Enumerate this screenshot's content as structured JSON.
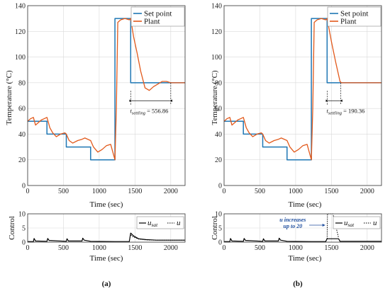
{
  "panels": [
    {
      "label": "(a)",
      "top": {
        "ylabel": "Temperature (°C)",
        "xlabel": "Time (sec)",
        "annotation": "556.86"
      },
      "bottom": {
        "ylabel": "Control",
        "xlabel": "Time (sec)",
        "note": ""
      }
    },
    {
      "label": "(b)",
      "top": {
        "ylabel": "Temperature (°C)",
        "xlabel": "Time (sec)",
        "annotation": "190.36"
      },
      "bottom": {
        "ylabel": "Control",
        "xlabel": "Time (sec)",
        "note": "u increases up to 20"
      }
    }
  ],
  "legend_top": [
    "Set point",
    "Plant"
  ],
  "colors": {
    "setpoint": "#1f77b4",
    "plant": "#e2591b",
    "grid": "#d9d9d9",
    "control": "#000000",
    "note": "#1f4e9e"
  },
  "chart_data": [
    {
      "type": "line",
      "xlabel": "Time (sec)",
      "ylabel": "Temperature (°C)",
      "xlim": [
        0,
        2200
      ],
      "ylim": [
        0,
        140
      ],
      "xticks": [
        0,
        500,
        1000,
        1500,
        2000
      ],
      "yticks": [
        0,
        20,
        40,
        60,
        80,
        100,
        120,
        140
      ],
      "grid": true,
      "legend": "top-right",
      "annotation": {
        "label": "t_settling = 556.86",
        "from": 1442,
        "to": 2000,
        "y": 66
      },
      "series": [
        {
          "name": "Set point",
          "x": [
            0,
            270,
            270,
            540,
            540,
            880,
            880,
            1220,
            1220,
            1440,
            1440,
            2200
          ],
          "y": [
            50,
            50,
            40,
            40,
            30,
            30,
            20,
            20,
            130,
            130,
            80,
            80
          ]
        },
        {
          "name": "Plant",
          "x": [
            0,
            40,
            80,
            110,
            150,
            190,
            230,
            270,
            310,
            350,
            400,
            460,
            520,
            540,
            580,
            630,
            700,
            760,
            800,
            880,
            920,
            980,
            1040,
            1100,
            1160,
            1220,
            1240,
            1260,
            1300,
            1360,
            1420,
            1440,
            1480,
            1530,
            1580,
            1640,
            1700,
            1760,
            1820,
            1880,
            1940,
            2000,
            2060,
            2120,
            2200
          ],
          "y": [
            50,
            52,
            53,
            47,
            49,
            51,
            52,
            53,
            45,
            41,
            38,
            40,
            41,
            40,
            35,
            33,
            35,
            36,
            37,
            35,
            30,
            26,
            28,
            31,
            32,
            20,
            60,
            127,
            129,
            130,
            129,
            130,
            116,
            103,
            89,
            76,
            74,
            77,
            79,
            81,
            81,
            80,
            80,
            80,
            80
          ]
        }
      ]
    },
    {
      "type": "line",
      "xlabel": "Time (sec)",
      "ylabel": "Control",
      "xlim": [
        0,
        2200
      ],
      "ylim": [
        0,
        10
      ],
      "xticks": [
        0,
        500,
        1000,
        1500,
        2000
      ],
      "yticks": [
        0,
        5,
        10
      ],
      "grid": true,
      "legend": "top-right",
      "legend_entries": [
        "u",
        "sat",
        "u"
      ],
      "series": [
        {
          "name": "u sat",
          "x": [
            0,
            80,
            90,
            110,
            270,
            280,
            300,
            540,
            550,
            570,
            760,
            770,
            790,
            880,
            1220,
            1230,
            1420,
            1440,
            1480,
            1550,
            1650,
            1800,
            2200
          ],
          "y": [
            0.2,
            0.2,
            1.3,
            0.4,
            0.3,
            1.3,
            0.6,
            0.3,
            1.2,
            0.4,
            0.4,
            1.4,
            0.7,
            0.3,
            0.2,
            0.2,
            0.2,
            3.2,
            2.2,
            1.2,
            0.9,
            0.7,
            0.7
          ]
        },
        {
          "name": "u",
          "x": [
            1440,
            1480,
            1550,
            1650,
            1800,
            2200
          ],
          "y": [
            2.5,
            1.8,
            1.1,
            0.8,
            0.7,
            0.7
          ]
        }
      ]
    },
    {
      "type": "line",
      "xlabel": "Time (sec)",
      "ylabel": "Temperature (°C)",
      "xlim": [
        0,
        2200
      ],
      "ylim": [
        0,
        140
      ],
      "xticks": [
        0,
        500,
        1000,
        1500,
        2000
      ],
      "yticks": [
        0,
        20,
        40,
        60,
        80,
        100,
        120,
        140
      ],
      "grid": true,
      "legend": "top-right",
      "annotation": {
        "label": "t_settling = 190.36",
        "from": 1442,
        "to": 1632,
        "y": 66
      },
      "series": [
        {
          "name": "Set point",
          "x": [
            0,
            270,
            270,
            540,
            540,
            880,
            880,
            1220,
            1220,
            1440,
            1440,
            2200
          ],
          "y": [
            50,
            50,
            40,
            40,
            30,
            30,
            20,
            20,
            130,
            130,
            80,
            80
          ]
        },
        {
          "name": "Plant",
          "x": [
            0,
            40,
            80,
            110,
            150,
            190,
            230,
            270,
            310,
            350,
            400,
            460,
            520,
            540,
            580,
            630,
            700,
            760,
            800,
            880,
            920,
            980,
            1040,
            1100,
            1160,
            1220,
            1240,
            1260,
            1300,
            1360,
            1420,
            1440,
            1500,
            1560,
            1620,
            1640,
            1800,
            2000,
            2200
          ],
          "y": [
            50,
            52,
            53,
            47,
            49,
            51,
            52,
            53,
            45,
            41,
            38,
            40,
            41,
            40,
            35,
            33,
            35,
            36,
            37,
            35,
            30,
            26,
            28,
            31,
            32,
            20,
            60,
            127,
            129,
            130,
            129,
            130,
            112,
            96,
            81,
            80,
            80,
            80,
            80
          ]
        }
      ]
    },
    {
      "type": "line",
      "xlabel": "Time (sec)",
      "ylabel": "Control",
      "xlim": [
        0,
        2200
      ],
      "ylim": [
        0,
        10
      ],
      "xticks": [
        0,
        500,
        1000,
        1500,
        2000
      ],
      "yticks": [
        0,
        5,
        10
      ],
      "grid": true,
      "legend": "top-right",
      "legend_entries": [
        "u",
        "sat",
        "u"
      ],
      "annotation": {
        "label": "u increases up to 20"
      },
      "series": [
        {
          "name": "u sat",
          "x": [
            0,
            80,
            90,
            110,
            270,
            280,
            300,
            540,
            550,
            570,
            760,
            770,
            790,
            880,
            1220,
            1230,
            1420,
            1440,
            1600,
            1620,
            2200
          ],
          "y": [
            0.2,
            0.2,
            1.3,
            0.4,
            0.3,
            1.3,
            0.6,
            0.3,
            1.2,
            0.4,
            0.4,
            1.4,
            0.7,
            0.3,
            0.2,
            0.2,
            0.2,
            1.2,
            1.2,
            0.3,
            0.3
          ]
        },
        {
          "name": "u",
          "x": [
            1440,
            1445,
            1520,
            1600
          ],
          "y": [
            1.2,
            10,
            10,
            1.5
          ]
        }
      ]
    }
  ]
}
